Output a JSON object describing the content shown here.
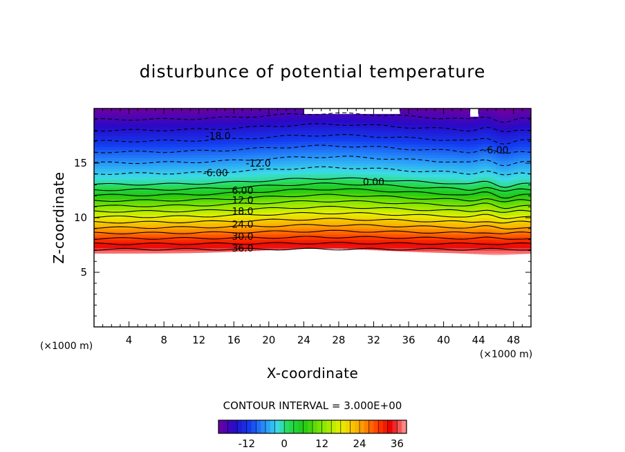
{
  "chart_data": {
    "type": "heatmap",
    "title": "disturbunce of potential temperature",
    "xlabel": "X-coordinate",
    "ylabel": "Z-coordinate",
    "x_unit": "(×1000 m)",
    "z_unit": "(×1000 m)",
    "xlim": [
      0,
      50
    ],
    "ylim": [
      0,
      20
    ],
    "x_ticks": [
      4,
      8,
      12,
      16,
      20,
      24,
      28,
      32,
      36,
      40,
      44,
      48
    ],
    "y_ticks": [
      5,
      10,
      15
    ],
    "grid": false,
    "contour_interval_label": "CONTOUR INTERVAL = 3.000E+00",
    "contour_interval": 3.0,
    "colorbar_ticks": [
      -12,
      0,
      12,
      24,
      36
    ],
    "colorbar_range": [
      -21,
      39
    ],
    "contour_labels": [
      {
        "text": "-18.0",
        "x": 14.2,
        "z": 17.5
      },
      {
        "text": "-12.0",
        "x": 18.8,
        "z": 15.0
      },
      {
        "text": "-6.00",
        "x": 13.9,
        "z": 14.1
      },
      {
        "text": "-6.00",
        "x": 46.0,
        "z": 16.2
      },
      {
        "text": "0.00",
        "x": 32.0,
        "z": 13.3
      },
      {
        "text": "6.00",
        "x": 17.0,
        "z": 12.5
      },
      {
        "text": "12.0",
        "x": 17.0,
        "z": 11.6
      },
      {
        "text": "18.0",
        "x": 17.0,
        "z": 10.6
      },
      {
        "text": "24.0",
        "x": 17.0,
        "z": 9.4
      },
      {
        "text": "30.0",
        "x": 17.0,
        "z": 8.3
      },
      {
        "text": "36.0",
        "x": 17.0,
        "z": 7.2
      }
    ],
    "field": {
      "description_values": "potential temperature disturbance ≈ 3 K per 375 m, decreasing with height above surface (~6.5–7 km); value 0 near z≈13 km; ≈ -21 at top (20 km)"
    }
  }
}
